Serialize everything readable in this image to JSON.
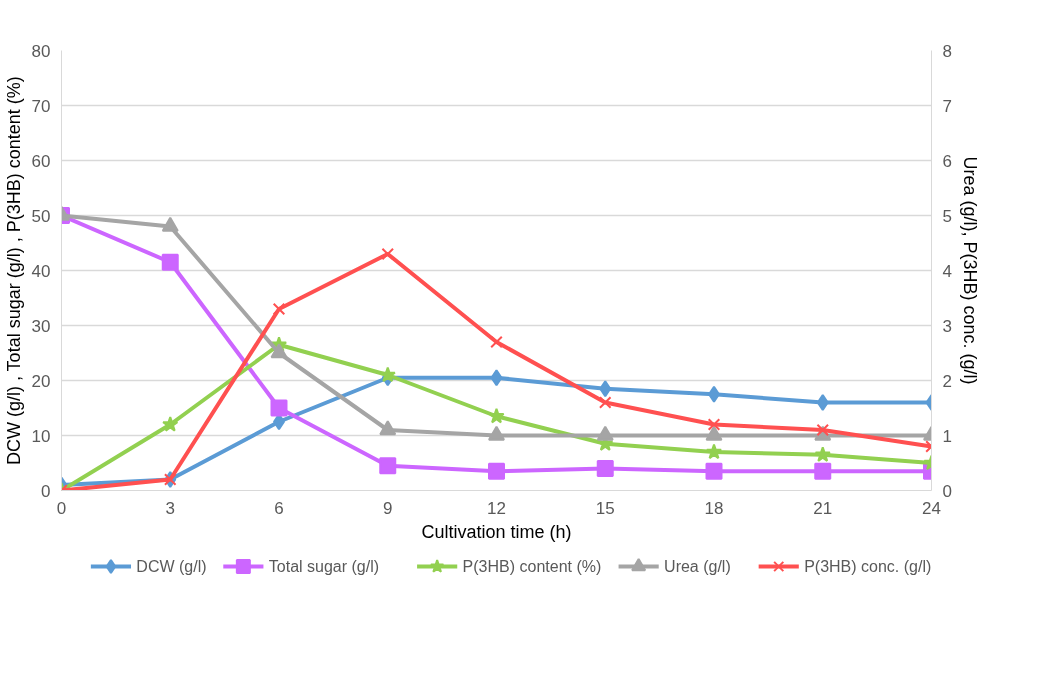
{
  "chart_data": {
    "type": "line",
    "xlabel": "Cultivation time (h)",
    "ylabel": "DCW (g/l) , Total sugar (g/l) , P(3HB) content (%)",
    "y2label": "Urea (g/l), P(3HB) conc. (g/l)",
    "categories": [
      "0",
      "3",
      "6",
      "9",
      "12",
      "15",
      "18",
      "21",
      "24"
    ],
    "ylim": [
      0,
      80
    ],
    "yticks": [
      0,
      10,
      20,
      30,
      40,
      50,
      60,
      70,
      80
    ],
    "y2lim": [
      0,
      8
    ],
    "y2ticks": [
      0,
      1,
      2,
      3,
      4,
      5,
      6,
      7,
      8
    ],
    "grid": "y",
    "legend": "bottom",
    "series": [
      {
        "name": "DCW (g/l)",
        "color": "#5b9bd5",
        "marker": "diamond",
        "values": [
          1,
          2,
          12.5,
          20.5,
          20.5,
          18.5,
          17.5,
          16,
          16
        ]
      },
      {
        "name": "Total sugar (g/l)",
        "color": "#cc66ff",
        "marker": "square",
        "values": [
          50,
          41.5,
          15,
          4.5,
          3.5,
          4,
          3.5,
          3.5,
          3.5
        ]
      },
      {
        "name": "P(3HB) content (%)",
        "color": "#92d050",
        "marker": "star",
        "values": [
          0,
          12,
          26.5,
          21,
          13.5,
          8.5,
          7,
          6.5,
          5
        ]
      },
      {
        "name": "Urea (g/l)",
        "color": "#a5a5a5",
        "marker": "triangle",
        "axis": "y2",
        "values": [
          5.0,
          4.8,
          2.5,
          1.1,
          1.0,
          1.0,
          1.0,
          1.0,
          1.0
        ]
      },
      {
        "name": "P(3HB) conc. (g/l)",
        "color": "#ff5050",
        "marker": "cross",
        "axis": "y2",
        "values": [
          0.0,
          0.2,
          3.3,
          4.3,
          2.7,
          1.6,
          1.2,
          1.1,
          0.8
        ]
      }
    ]
  }
}
